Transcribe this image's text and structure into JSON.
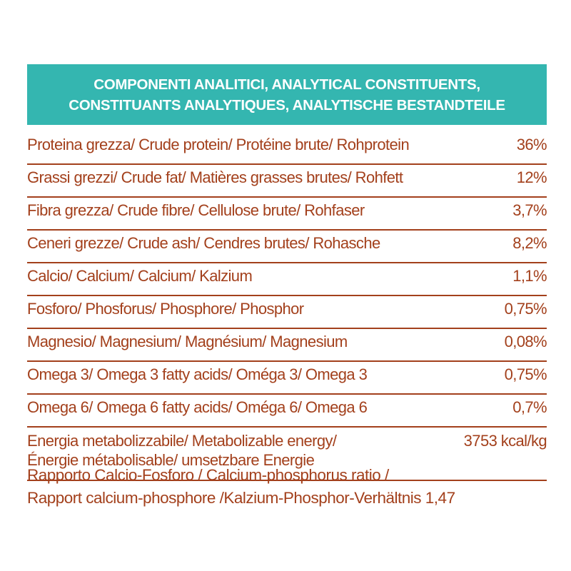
{
  "header": {
    "line1": "COMPONENTI ANALITICI, ANALYTICAL CONSTITUENTS,",
    "line2": "CONSTITUANTS ANALYTIQUES, ANALYTISCHE BESTANDTEILE"
  },
  "rows": [
    {
      "label": "Proteina grezza/ Crude protein/ Protéine brute/ Rohprotein",
      "value": "36%"
    },
    {
      "label": "Grassi grezzi/ Crude fat/ Matières grasses brutes/ Rohfett",
      "value": "12%"
    },
    {
      "label": "Fibra grezza/ Crude fibre/ Cellulose brute/ Rohfaser",
      "value": "3,7%"
    },
    {
      "label": "Ceneri grezze/ Crude ash/ Cendres brutes/ Rohasche",
      "value": "8,2%"
    },
    {
      "label": "Calcio/ Calcium/ Calcium/ Kalzium",
      "value": "1,1%"
    },
    {
      "label": "Fosforo/ Phosforus/ Phosphore/ Phosphor",
      "value": "0,75%"
    },
    {
      "label": "Magnesio/ Magnesium/ Magnésium/ Magnesium",
      "value": "0,08%"
    },
    {
      "label": "Omega 3/ Omega 3 fatty acids/  Oméga 3/ Omega 3",
      "value": "0,75%"
    },
    {
      "label": "Omega 6/ Omega 6 fatty acids/ Oméga 6/ Omega 6",
      "value": "0,7%"
    },
    {
      "label": "Energia metabolizzabile/ Metabolizable energy/\nÉnergie métabolisable/ umsetzbare Energie",
      "value": "3753 kcal/kg"
    }
  ],
  "ratio": {
    "line1": "Rapporto Calcio-Fosforo / Calcium-phosphorus ratio /",
    "line2": "Rapport calcium-phosphore /Kalzium-Phosphor-Verhältnis 1,47"
  }
}
